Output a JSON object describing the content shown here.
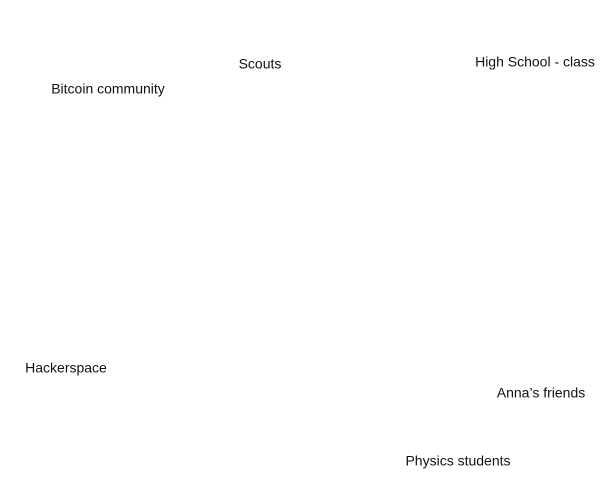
{
  "labels": [
    "Bitcoin community",
    "Scouts",
    "High School - class",
    "Hackerspace",
    "Anna’s friends",
    "Physics students"
  ]
}
